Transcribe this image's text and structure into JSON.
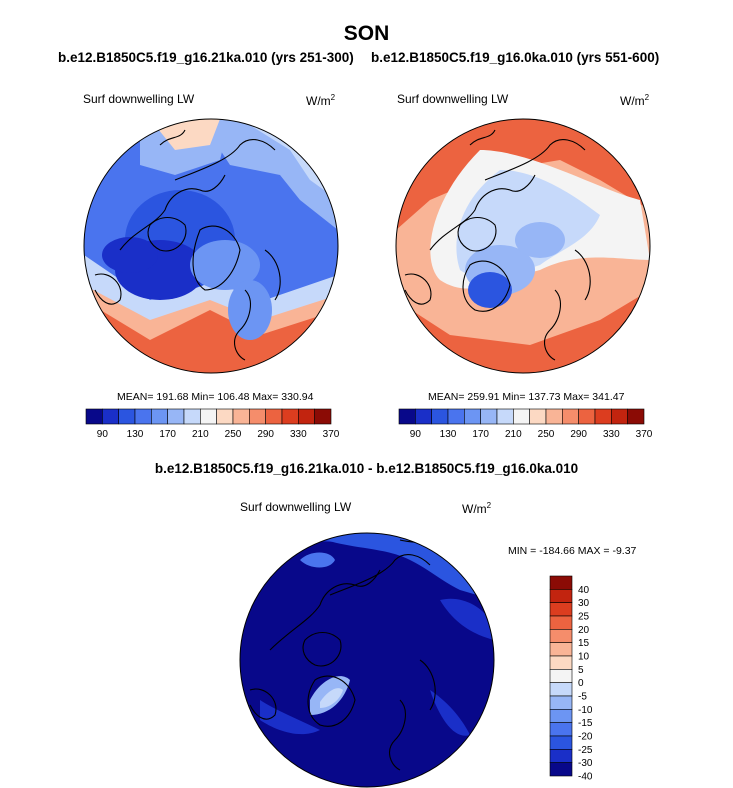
{
  "figure": {
    "title": "SON",
    "left_case": "b.e12.B1850C5.f19_g16.21ka.010 (yrs 251-300)",
    "right_case": "b.e12.B1850C5.f19_g16.0ka.010 (yrs 551-600)",
    "diff_title": "b.e12.B1850C5.f19_g16.21ka.010 - b.e12.B1850C5.f19_g16.0ka.010"
  },
  "panels": {
    "left": {
      "variable": "Surf downwelling LW",
      "units_base": "W/m",
      "units_exp": "2",
      "stats": "MEAN= 191.68  Min= 106.48  Max= 330.94"
    },
    "right": {
      "variable": "Surf downwelling LW",
      "units_base": "W/m",
      "units_exp": "2",
      "stats": "MEAN= 259.91  Min= 137.73  Max= 341.47"
    },
    "diff": {
      "variable": "Surf downwelling LW",
      "units_base": "W/m",
      "units_exp": "2",
      "stats": "MIN = -184.66 MAX =  -9.37"
    }
  },
  "colorbars": {
    "horizontal": {
      "colors": [
        "#08088a",
        "#1a2fc8",
        "#2b55e0",
        "#4a74ee",
        "#6c95f3",
        "#97b6f6",
        "#c6d9fa",
        "#f4f4f4",
        "#fcd9c3",
        "#f9b496",
        "#f58d6b",
        "#ec6340",
        "#dc3d1f",
        "#c2240f",
        "#8b0b05"
      ],
      "labels": [
        "90",
        "130",
        "170",
        "210",
        "250",
        "290",
        "330",
        "370"
      ]
    },
    "vertical": {
      "colors": [
        "#8b0b05",
        "#c2240f",
        "#dc3d1f",
        "#ec6340",
        "#f58d6b",
        "#f9b496",
        "#fcd9c3",
        "#f4f4f4",
        "#c6d9fa",
        "#97b6f6",
        "#6c95f3",
        "#4a74ee",
        "#2b55e0",
        "#1a2fc8",
        "#08088a"
      ],
      "labels": [
        "40",
        "30",
        "25",
        "20",
        "15",
        "10",
        "5",
        "0",
        "-5",
        "-10",
        "-15",
        "-20",
        "-25",
        "-30",
        "-40"
      ]
    }
  }
}
